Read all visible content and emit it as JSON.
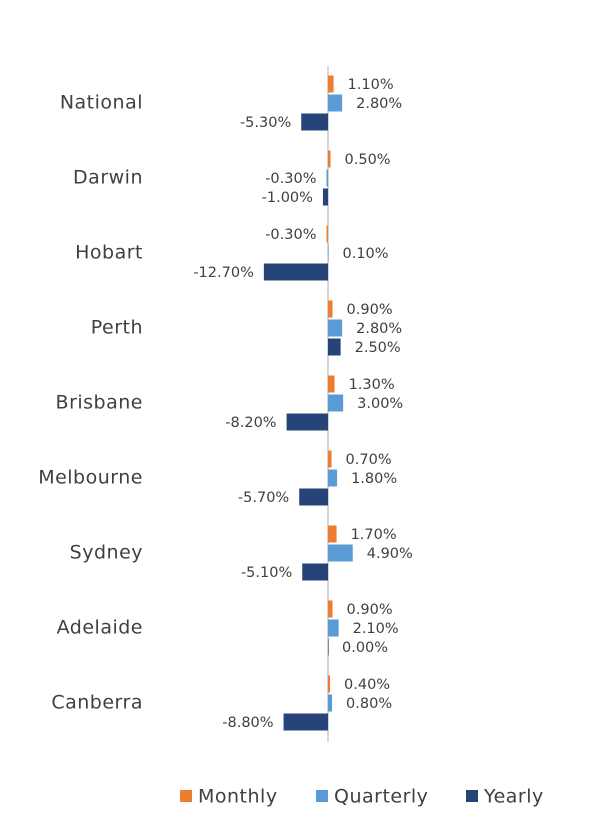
{
  "chart_data": {
    "type": "bar",
    "orientation": "horizontal",
    "categories": [
      "National",
      "Darwin",
      "Hobart",
      "Perth",
      "Brisbane",
      "Melbourne",
      "Sydney",
      "Adelaide",
      "Canberra"
    ],
    "series": [
      {
        "name": "Monthly",
        "color": "#ed7d31",
        "values": [
          1.1,
          0.5,
          -0.3,
          0.9,
          1.3,
          0.7,
          1.7,
          0.9,
          0.4
        ],
        "value_labels": [
          "1.10%",
          "0.50%",
          "-0.30%",
          "0.90%",
          "1.30%",
          "0.70%",
          "1.70%",
          "0.90%",
          "0.40%"
        ]
      },
      {
        "name": "Quarterly",
        "color": "#5b9bd5",
        "values": [
          2.8,
          -0.3,
          0.1,
          2.8,
          3.0,
          1.8,
          4.9,
          2.1,
          0.8
        ],
        "value_labels": [
          "2.80%",
          "-0.30%",
          "0.10%",
          "2.80%",
          "3.00%",
          "1.80%",
          "4.90%",
          "2.10%",
          "0.80%"
        ]
      },
      {
        "name": "Yearly",
        "color": "#264478",
        "values": [
          -5.3,
          -1.0,
          -12.7,
          2.5,
          -8.2,
          -5.7,
          -5.1,
          0.0,
          -8.8
        ],
        "value_labels": [
          "-5.30%",
          "-1.00%",
          "-12.70%",
          "2.50%",
          "-8.20%",
          "-5.70%",
          "-5.10%",
          "0.00%",
          "-8.80%"
        ]
      }
    ]
  }
}
